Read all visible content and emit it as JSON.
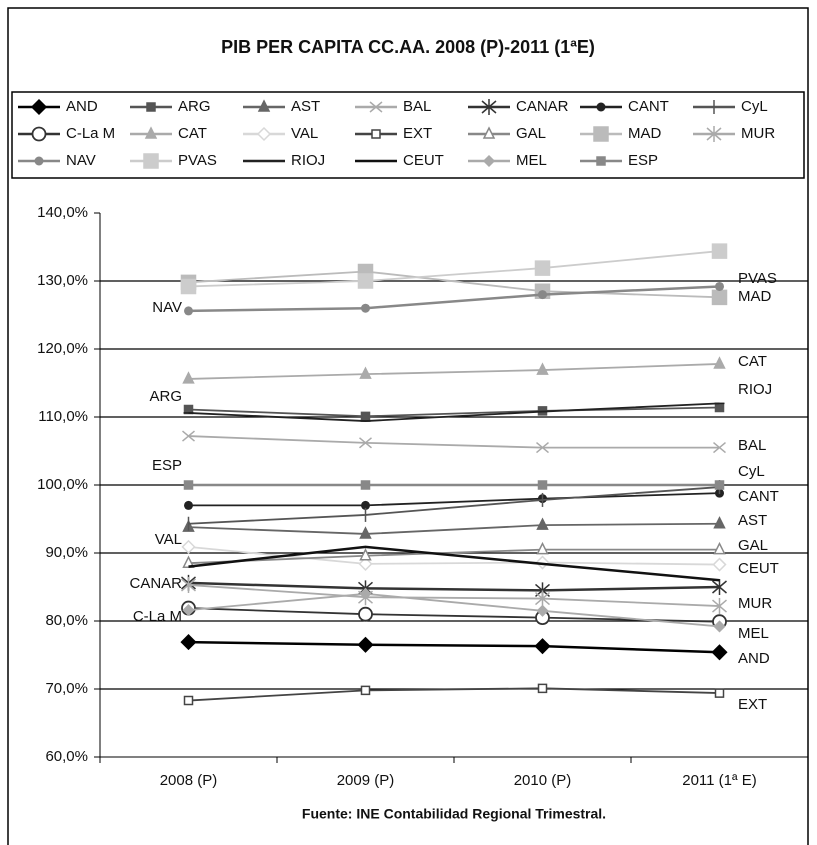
{
  "chart_data": {
    "type": "line",
    "title": "PIB PER CAPITA CC.AA. 2008 (P)-2011 (1ªE)",
    "source": "Fuente: INE Contabilidad Regional Trimestral.",
    "categories": [
      "2008 (P)",
      "2009 (P)",
      "2010 (P)",
      "2011 (1ª E)"
    ],
    "ylim": [
      60,
      140
    ],
    "yticks": [
      {
        "value": 60,
        "label": "60,0%"
      },
      {
        "value": 70,
        "label": "70,0%"
      },
      {
        "value": 80,
        "label": "80,0%"
      },
      {
        "value": 90,
        "label": "90,0%"
      },
      {
        "value": 100,
        "label": "100,0%"
      },
      {
        "value": 110,
        "label": "110,0%"
      },
      {
        "value": 120,
        "label": "120,0%"
      },
      {
        "value": 130,
        "label": "130,0%"
      },
      {
        "value": 140,
        "label": "140,0%"
      }
    ],
    "grid": true,
    "series": [
      {
        "name": "AND",
        "color": "#000000",
        "marker": "diamond",
        "values": [
          76.9,
          76.5,
          76.3,
          75.4
        ]
      },
      {
        "name": "ARG",
        "color": "#555555",
        "marker": "square",
        "values": [
          111.1,
          110.1,
          110.9,
          111.4
        ]
      },
      {
        "name": "AST",
        "color": "#666666",
        "marker": "triangle",
        "values": [
          93.8,
          92.8,
          94.1,
          94.3
        ]
      },
      {
        "name": "BAL",
        "color": "#aaaaaa",
        "marker": "x",
        "values": [
          107.2,
          106.2,
          105.5,
          105.5
        ]
      },
      {
        "name": "CANAR",
        "color": "#333333",
        "marker": "asterisk",
        "values": [
          85.6,
          84.8,
          84.5,
          85.0
        ]
      },
      {
        "name": "CANT",
        "color": "#222222",
        "marker": "circle",
        "values": [
          97.0,
          97.0,
          98.0,
          98.8
        ]
      },
      {
        "name": "CyL",
        "color": "#555555",
        "marker": "plus",
        "values": [
          94.3,
          95.6,
          97.8,
          99.7
        ]
      },
      {
        "name": "C-La M",
        "color": "#333333",
        "marker": "open-circle",
        "values": [
          81.9,
          81.0,
          80.5,
          79.9
        ]
      },
      {
        "name": "CAT",
        "color": "#aaaaaa",
        "marker": "triangle",
        "values": [
          115.6,
          116.3,
          116.9,
          117.8
        ]
      },
      {
        "name": "VAL",
        "color": "#d8d8d8",
        "marker": "open-diamond",
        "values": [
          90.9,
          88.4,
          88.6,
          88.3
        ]
      },
      {
        "name": "EXT",
        "color": "#444444",
        "marker": "open-square",
        "values": [
          68.3,
          69.8,
          70.1,
          69.4
        ]
      },
      {
        "name": "GAL",
        "color": "#888888",
        "marker": "open-triangle",
        "values": [
          88.5,
          89.6,
          90.5,
          90.5
        ]
      },
      {
        "name": "MAD",
        "color": "#bbbbbb",
        "marker": "big-square",
        "values": [
          129.8,
          131.4,
          128.5,
          127.6
        ]
      },
      {
        "name": "MUR",
        "color": "#aaaaaa",
        "marker": "asterisk",
        "values": [
          85.3,
          83.5,
          83.3,
          82.2
        ]
      },
      {
        "name": "NAV",
        "color": "#888888",
        "marker": "circle",
        "values": [
          125.6,
          126.0,
          128.0,
          129.2
        ]
      },
      {
        "name": "PVAS",
        "color": "#cccccc",
        "marker": "big-square",
        "values": [
          129.2,
          130.0,
          131.9,
          134.4
        ]
      },
      {
        "name": "RIOJ",
        "color": "#222222",
        "marker": "dash",
        "values": [
          110.6,
          109.4,
          110.8,
          112.0
        ]
      },
      {
        "name": "CEUT",
        "color": "#111111",
        "marker": "none",
        "values": [
          88.0,
          90.9,
          88.4,
          86.0
        ]
      },
      {
        "name": "MEL",
        "color": "#aaaaaa",
        "marker": "small-diamond",
        "values": [
          81.6,
          84.0,
          81.5,
          79.2
        ]
      },
      {
        "name": "ESP",
        "color": "#888888",
        "marker": "square",
        "values": [
          100,
          100,
          100,
          100
        ]
      }
    ]
  }
}
